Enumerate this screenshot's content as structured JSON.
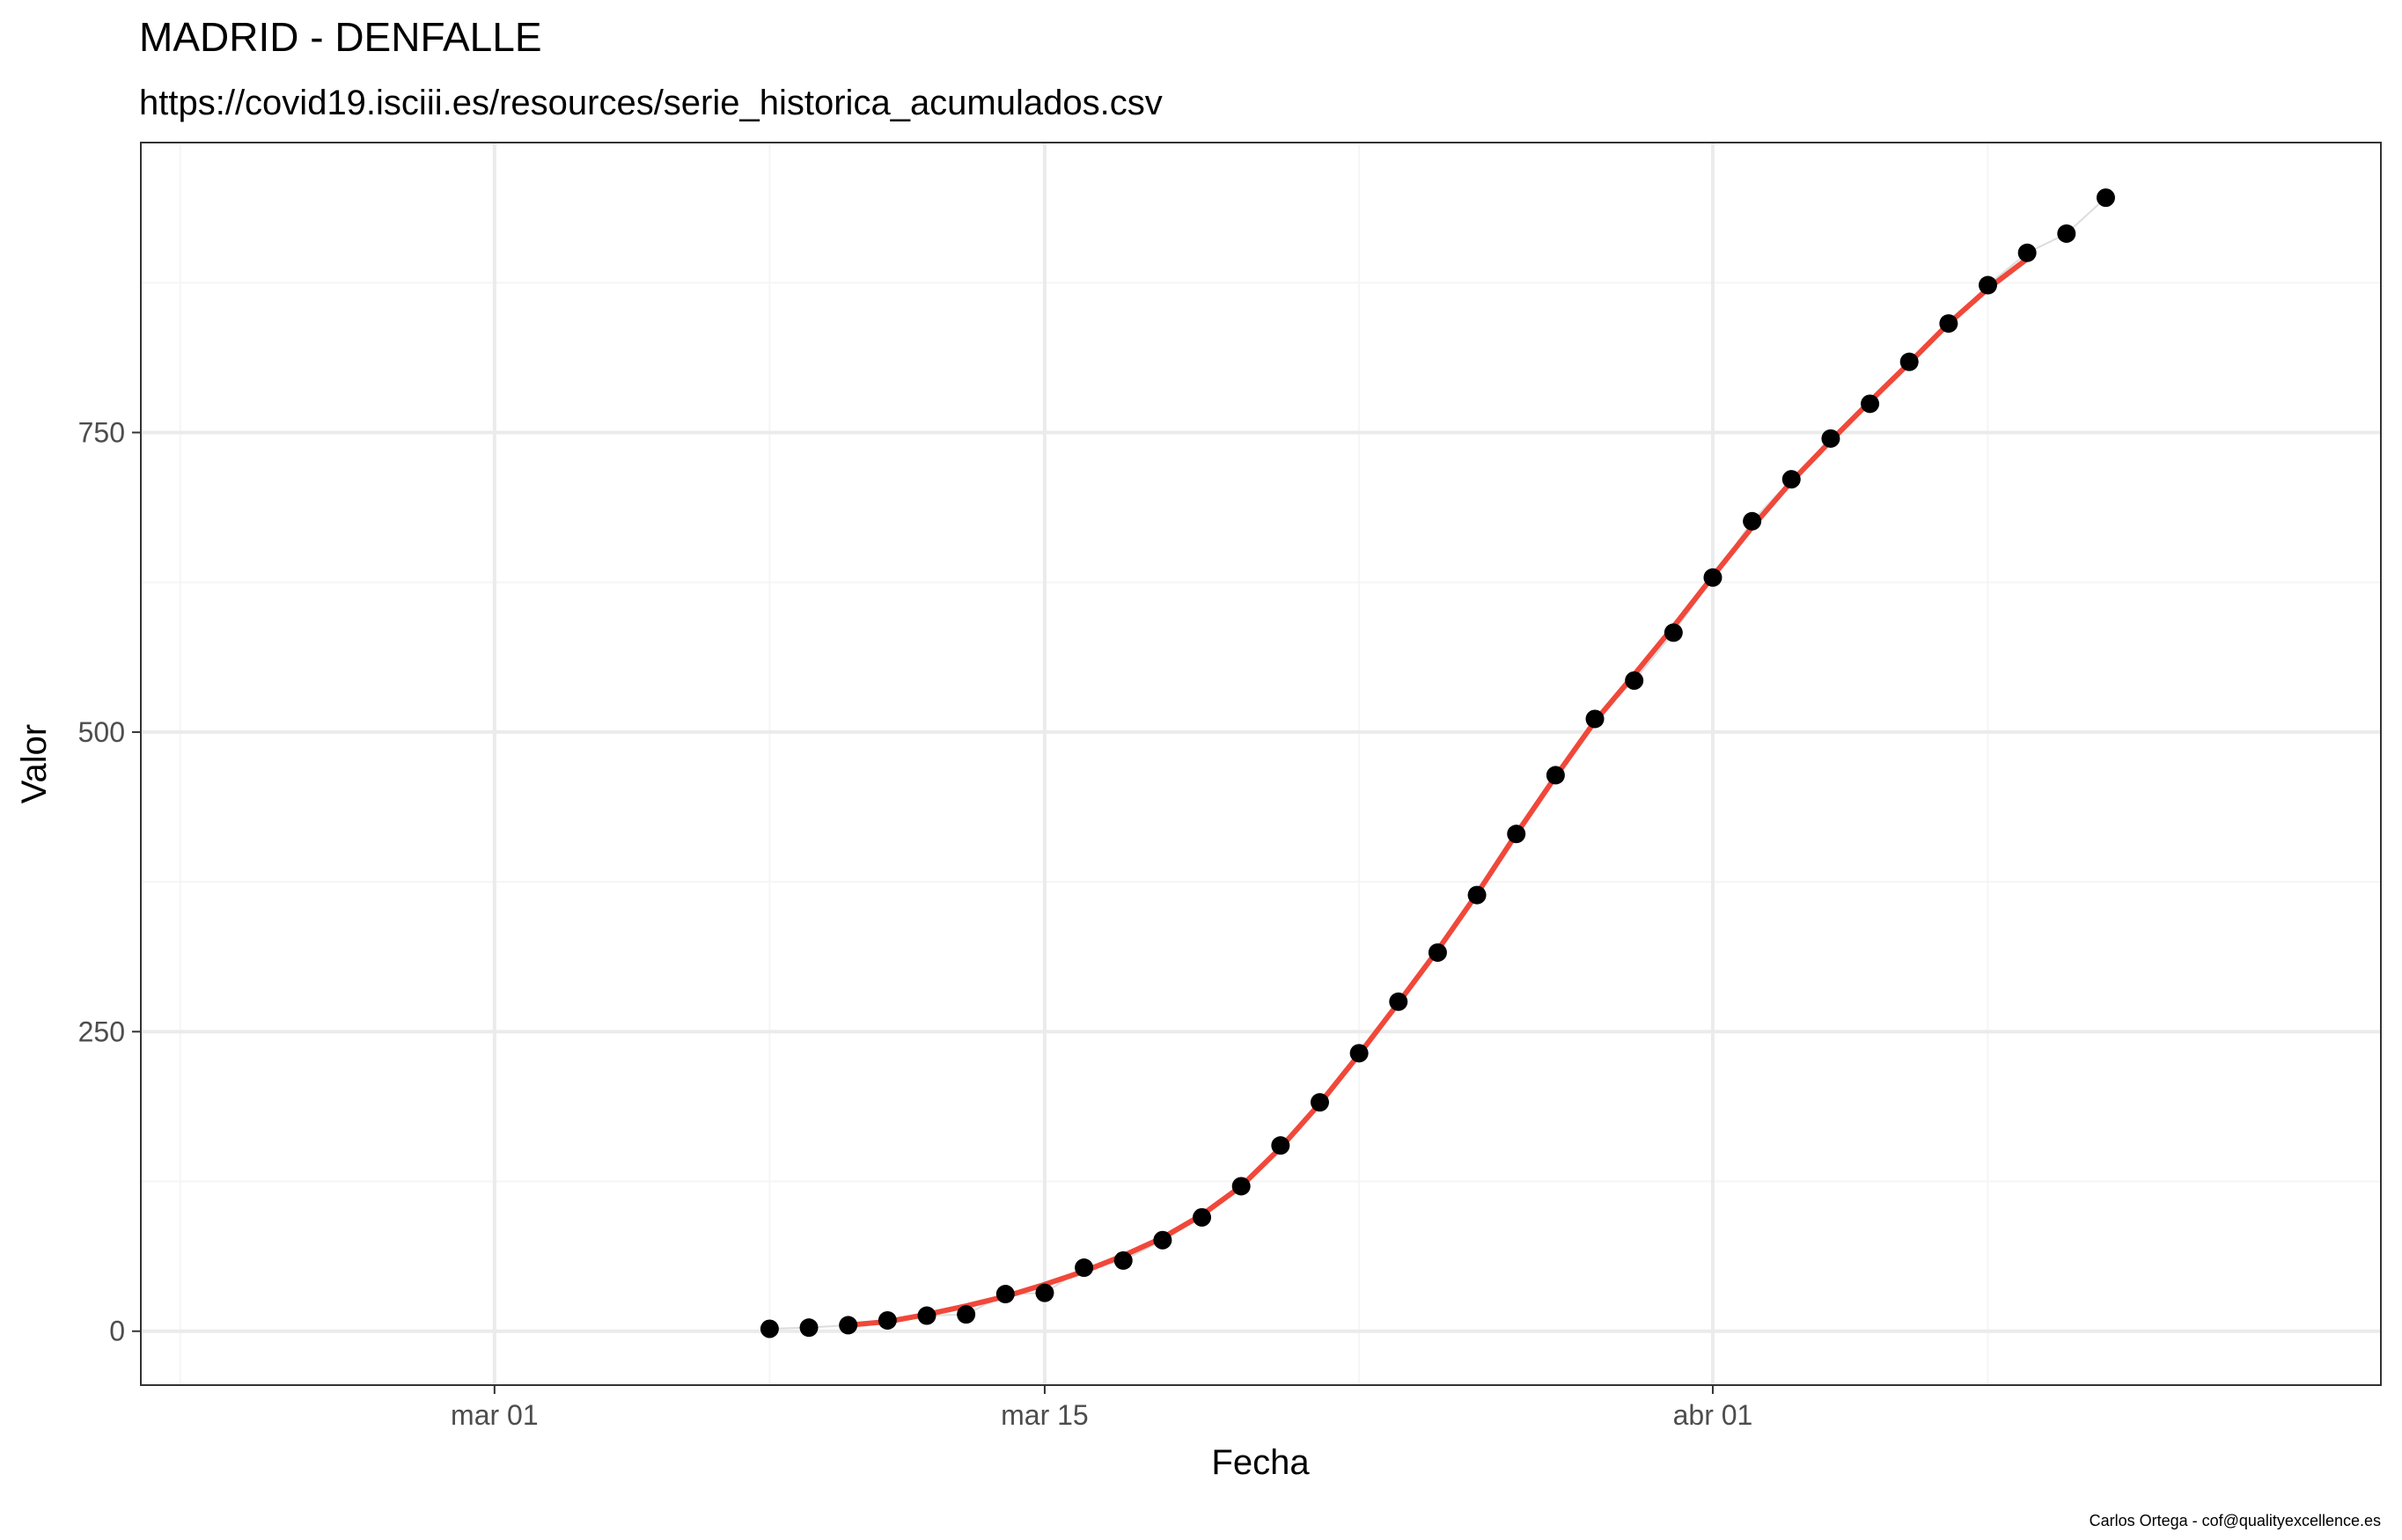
{
  "chart_data": {
    "type": "scatter",
    "title": "MADRID - DENFALLE",
    "subtitle": "https://covid19.isciii.es/resources/serie_historica_acumulados.csv",
    "xlabel": "Fecha",
    "ylabel": "Valor",
    "caption": "Carlos Ortega - cof@qualityexcellence.es",
    "x_type": "date",
    "xlim": [
      "2020-02-21",
      "2020-04-18"
    ],
    "ylim": [
      -45,
      992
    ],
    "x_ticks": [
      {
        "date": "2020-03-01",
        "label": "mar 01"
      },
      {
        "date": "2020-03-15",
        "label": "mar 15"
      },
      {
        "date": "2020-04-01",
        "label": "abr 01"
      }
    ],
    "x_minor_ticks": [
      "2020-02-22",
      "2020-03-08",
      "2020-03-23",
      "2020-04-08"
    ],
    "y_ticks": [
      0,
      250,
      500,
      750
    ],
    "y_minor_ticks": [
      125,
      375,
      625,
      875
    ],
    "grid": true,
    "colors": {
      "points": "#000000",
      "fit_line": "#F0483A",
      "connector": "#DDDDDD",
      "grid_major": "#EBEBEB",
      "grid_minor": "#F5F5F5",
      "panel_border": "#333333"
    },
    "series": [
      {
        "kind": "points",
        "x": [
          "2020-03-08",
          "2020-03-09",
          "2020-03-10",
          "2020-03-11",
          "2020-03-12",
          "2020-03-13",
          "2020-03-14",
          "2020-03-15",
          "2020-03-16",
          "2020-03-17",
          "2020-03-18",
          "2020-03-19",
          "2020-03-20",
          "2020-03-21",
          "2020-03-22",
          "2020-03-23",
          "2020-03-24",
          "2020-03-25",
          "2020-03-26",
          "2020-03-27",
          "2020-03-28",
          "2020-03-29",
          "2020-03-30",
          "2020-03-31",
          "2020-04-01",
          "2020-04-02",
          "2020-04-03",
          "2020-04-04",
          "2020-04-05",
          "2020-04-06",
          "2020-04-07",
          "2020-04-08",
          "2020-04-09",
          "2020-04-10",
          "2020-04-11"
        ],
        "y": [
          2,
          3,
          5,
          9,
          13,
          14,
          31,
          32,
          53,
          59,
          76,
          95,
          121,
          155,
          191,
          232,
          275,
          316,
          364,
          415,
          464,
          511,
          543,
          583,
          629,
          676,
          711,
          745,
          774,
          809,
          841,
          873,
          900,
          916,
          946
        ]
      },
      {
        "kind": "smooth",
        "x": [
          "2020-03-10",
          "2020-03-11",
          "2020-03-12",
          "2020-03-13",
          "2020-03-14",
          "2020-03-15",
          "2020-03-16",
          "2020-03-17",
          "2020-03-18",
          "2020-03-19",
          "2020-03-20",
          "2020-03-21",
          "2020-03-22",
          "2020-03-23",
          "2020-03-24",
          "2020-03-25",
          "2020-03-26",
          "2020-03-27",
          "2020-03-28",
          "2020-03-29",
          "2020-03-30",
          "2020-03-31",
          "2020-04-01",
          "2020-04-02",
          "2020-04-03",
          "2020-04-04",
          "2020-04-05",
          "2020-04-06",
          "2020-04-07",
          "2020-04-08",
          "2020-04-09"
        ],
        "y": [
          5,
          8,
          14,
          21,
          29,
          39,
          50,
          63,
          78,
          97,
          121,
          153,
          190,
          231,
          274,
          318,
          365,
          415,
          463,
          509,
          548,
          588,
          630,
          671,
          709,
          743,
          776,
          808,
          841,
          870,
          895
        ]
      }
    ]
  }
}
